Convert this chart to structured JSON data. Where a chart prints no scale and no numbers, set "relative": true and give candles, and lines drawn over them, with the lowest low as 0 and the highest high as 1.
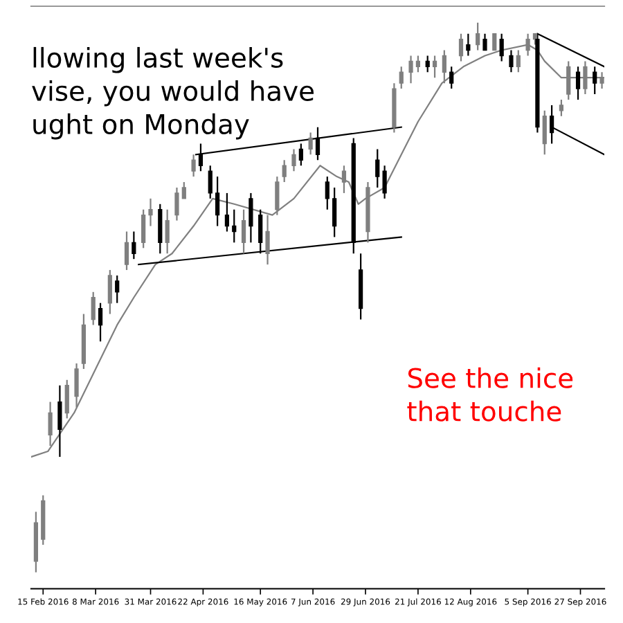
{
  "chart_data": {
    "type": "candlestick",
    "relative": true,
    "x": [
      "2016-02-12",
      "2016-02-15",
      "2016-02-18",
      "2016-02-22",
      "2016-02-25",
      "2016-02-29",
      "2016-03-03",
      "2016-03-07",
      "2016-03-10",
      "2016-03-14",
      "2016-03-17",
      "2016-03-21",
      "2016-03-24",
      "2016-03-28",
      "2016-03-31",
      "2016-04-04",
      "2016-04-07",
      "2016-04-11",
      "2016-04-14",
      "2016-04-18",
      "2016-04-21",
      "2016-04-25",
      "2016-04-28",
      "2016-05-02",
      "2016-05-05",
      "2016-05-09",
      "2016-05-12",
      "2016-05-16",
      "2016-05-19",
      "2016-05-23",
      "2016-05-26",
      "2016-05-30",
      "2016-06-02",
      "2016-06-06",
      "2016-06-09",
      "2016-06-13",
      "2016-06-16",
      "2016-06-20",
      "2016-06-24",
      "2016-06-27",
      "2016-06-30",
      "2016-07-04",
      "2016-07-07",
      "2016-07-11",
      "2016-07-14",
      "2016-07-18",
      "2016-07-21",
      "2016-07-25",
      "2016-07-28",
      "2016-08-01",
      "2016-08-04",
      "2016-08-08",
      "2016-08-11",
      "2016-08-15",
      "2016-08-18",
      "2016-08-22",
      "2016-08-25",
      "2016-08-29",
      "2016-09-01",
      "2016-09-05",
      "2016-09-08",
      "2016-09-09",
      "2016-09-12",
      "2016-09-15",
      "2016-09-19",
      "2016-09-22",
      "2016-09-26",
      "2016-09-29",
      "2016-10-03",
      "2016-10-06"
    ],
    "ohlc": [
      [
        0.02,
        0.11,
        0,
        0.09
      ],
      [
        0.06,
        0.14,
        0.05,
        0.13
      ],
      [
        0.25,
        0.31,
        0.23,
        0.29
      ],
      [
        0.31,
        0.34,
        0.21,
        0.26
      ],
      [
        0.29,
        0.35,
        0.28,
        0.34
      ],
      [
        0.32,
        0.38,
        0.3,
        0.37
      ],
      [
        0.38,
        0.47,
        0.37,
        0.45
      ],
      [
        0.46,
        0.51,
        0.45,
        0.5
      ],
      [
        0.48,
        0.49,
        0.42,
        0.45
      ],
      [
        0.49,
        0.55,
        0.47,
        0.54
      ],
      [
        0.53,
        0.54,
        0.49,
        0.51
      ],
      [
        0.56,
        0.62,
        0.55,
        0.6
      ],
      [
        0.6,
        0.62,
        0.57,
        0.58
      ],
      [
        0.6,
        0.66,
        0.59,
        0.65
      ],
      [
        0.65,
        0.68,
        0.63,
        0.66
      ],
      [
        0.66,
        0.67,
        0.58,
        0.6
      ],
      [
        0.6,
        0.66,
        0.58,
        0.64
      ],
      [
        0.65,
        0.7,
        0.64,
        0.69
      ],
      [
        0.68,
        0.71,
        0.68,
        0.7
      ],
      [
        0.73,
        0.76,
        0.72,
        0.75
      ],
      [
        0.76,
        0.78,
        0.73,
        0.74
      ],
      [
        0.73,
        0.74,
        0.68,
        0.69
      ],
      [
        0.69,
        0.72,
        0.63,
        0.65
      ],
      [
        0.65,
        0.69,
        0.62,
        0.63
      ],
      [
        0.63,
        0.66,
        0.6,
        0.62
      ],
      [
        0.6,
        0.66,
        0.58,
        0.64
      ],
      [
        0.68,
        0.69,
        0.6,
        0.63
      ],
      [
        0.65,
        0.66,
        0.58,
        0.6
      ],
      [
        0.58,
        0.65,
        0.56,
        0.62
      ],
      [
        0.66,
        0.72,
        0.65,
        0.71
      ],
      [
        0.72,
        0.75,
        0.71,
        0.74
      ],
      [
        0.74,
        0.77,
        0.73,
        0.76
      ],
      [
        0.77,
        0.78,
        0.74,
        0.75
      ],
      [
        0.77,
        0.8,
        0.76,
        0.79
      ],
      [
        0.79,
        0.81,
        0.75,
        0.76
      ],
      [
        0.71,
        0.72,
        0.66,
        0.68
      ],
      [
        0.68,
        0.7,
        0.61,
        0.63
      ],
      [
        0.71,
        0.74,
        0.69,
        0.73
      ],
      [
        0.78,
        0.79,
        0.58,
        0.6
      ],
      [
        0.55,
        0.58,
        0.46,
        0.48
      ],
      [
        0.62,
        0.71,
        0.6,
        0.7
      ],
      [
        0.75,
        0.77,
        0.7,
        0.72
      ],
      [
        0.73,
        0.74,
        0.68,
        0.69
      ],
      [
        0.81,
        0.89,
        0.8,
        0.88
      ],
      [
        0.89,
        0.92,
        0.88,
        0.91
      ],
      [
        0.91,
        0.94,
        0.89,
        0.93
      ],
      [
        0.92,
        0.94,
        0.91,
        0.93
      ],
      [
        0.93,
        0.94,
        0.91,
        0.92
      ],
      [
        0.92,
        0.94,
        0.9,
        0.93
      ],
      [
        0.91,
        0.95,
        0.89,
        0.94
      ],
      [
        0.91,
        0.92,
        0.88,
        0.89
      ],
      [
        0.94,
        0.98,
        0.93,
        0.97
      ],
      [
        0.96,
        0.98,
        0.94,
        0.95
      ],
      [
        0.96,
        1,
        0.95,
        0.98
      ],
      [
        0.97,
        0.98,
        0.95,
        0.95
      ],
      [
        0.95,
        0.98,
        0.95,
        0.98
      ],
      [
        0.97,
        0.98,
        0.93,
        0.94
      ],
      [
        0.94,
        0.95,
        0.91,
        0.92
      ],
      [
        0.92,
        0.95,
        0.91,
        0.94
      ],
      [
        0.95,
        0.98,
        0.94,
        0.97
      ],
      [
        0.97,
        0.98,
        0.96,
        0.98
      ],
      [
        0.97,
        0.98,
        0.8,
        0.81
      ],
      [
        0.78,
        0.84,
        0.76,
        0.83
      ],
      [
        0.83,
        0.85,
        0.78,
        0.8
      ],
      [
        0.84,
        0.86,
        0.83,
        0.85
      ],
      [
        0.87,
        0.93,
        0.86,
        0.92
      ],
      [
        0.91,
        0.92,
        0.86,
        0.88
      ],
      [
        0.88,
        0.93,
        0.87,
        0.92
      ],
      [
        0.91,
        0.92,
        0.87,
        0.89
      ],
      [
        0.89,
        0.91,
        0.88,
        0.9
      ]
    ],
    "colors": [
      "#7f7f7f",
      "#7f7f7f",
      "#7f7f7f",
      "#000000",
      "#7f7f7f",
      "#7f7f7f",
      "#7f7f7f",
      "#7f7f7f",
      "#000000",
      "#7f7f7f",
      "#000000",
      "#7f7f7f",
      "#000000",
      "#7f7f7f",
      "#7f7f7f",
      "#000000",
      "#7f7f7f",
      "#7f7f7f",
      "#7f7f7f",
      "#7f7f7f",
      "#000000",
      "#000000",
      "#000000",
      "#000000",
      "#000000",
      "#7f7f7f",
      "#000000",
      "#000000",
      "#7f7f7f",
      "#7f7f7f",
      "#7f7f7f",
      "#7f7f7f",
      "#000000",
      "#7f7f7f",
      "#000000",
      "#000000",
      "#000000",
      "#7f7f7f",
      "#000000",
      "#000000",
      "#7f7f7f",
      "#000000",
      "#000000",
      "#7f7f7f",
      "#7f7f7f",
      "#7f7f7f",
      "#7f7f7f",
      "#000000",
      "#7f7f7f",
      "#7f7f7f",
      "#000000",
      "#7f7f7f",
      "#000000",
      "#7f7f7f",
      "#000000",
      "#7f7f7f",
      "#000000",
      "#000000",
      "#7f7f7f",
      "#7f7f7f",
      "#7f7f7f",
      "#000000",
      "#7f7f7f",
      "#000000",
      "#7f7f7f",
      "#7f7f7f",
      "#000000",
      "#7f7f7f",
      "#000000",
      "#7f7f7f"
    ],
    "series": [
      {
        "type": "line",
        "color": "#808080",
        "x": [
          "2016-02-10",
          "2016-02-17",
          "2016-02-28",
          "2016-03-08",
          "2016-03-17",
          "2016-03-24",
          "2016-04-02",
          "2016-04-09",
          "2016-04-18",
          "2016-04-26",
          "2016-05-05",
          "2016-05-21",
          "2016-05-30",
          "2016-06-10",
          "2016-06-17",
          "2016-06-22",
          "2016-06-26",
          "2016-06-29",
          "2016-07-07",
          "2016-07-14",
          "2016-07-21",
          "2016-07-31",
          "2016-08-09",
          "2016-08-18",
          "2016-08-25",
          "2016-09-05",
          "2016-09-09",
          "2016-09-12",
          "2016-09-19",
          "2016-09-23",
          "2016-10-07"
        ],
        "values": [
          0.21,
          0.22,
          0.29,
          0.37,
          0.45,
          0.5,
          0.56,
          0.58,
          0.63,
          0.68,
          0.67,
          0.65,
          0.68,
          0.74,
          0.72,
          0.71,
          0.67,
          0.68,
          0.7,
          0.76,
          0.82,
          0.89,
          0.92,
          0.94,
          0.95,
          0.96,
          0.95,
          0.93,
          0.9,
          0.9,
          0.9
        ]
      },
      {
        "type": "line",
        "color": "#000000",
        "x": [
          "2016-03-26",
          "2016-07-14"
        ],
        "values": [
          0.56,
          0.61
        ]
      },
      {
        "type": "line",
        "color": "#000000",
        "x": [
          "2016-04-19",
          "2016-07-14"
        ],
        "values": [
          0.76,
          0.81
        ]
      },
      {
        "type": "line",
        "color": "#000000",
        "x": [
          "2016-09-09",
          "2016-10-07"
        ],
        "values": [
          0.98,
          0.92
        ]
      },
      {
        "type": "line",
        "color": "#000000",
        "x": [
          "2016-09-15",
          "2016-10-07"
        ],
        "values": [
          0.81,
          0.76
        ]
      }
    ],
    "xlim": [
      "2016-02-10",
      "2016-10-07"
    ],
    "xticks": [
      {
        "value": "2016-02-15",
        "label": "15 Feb 2016"
      },
      {
        "value": "2016-03-08",
        "label": "8 Mar 2016"
      },
      {
        "value": "2016-03-31",
        "label": "31 Mar 2016"
      },
      {
        "value": "2016-04-22",
        "label": "22 Apr 2016"
      },
      {
        "value": "2016-05-16",
        "label": "16 May 2016"
      },
      {
        "value": "2016-06-07",
        "label": "7 Jun 2016"
      },
      {
        "value": "2016-06-29",
        "label": "29 Jun 2016"
      },
      {
        "value": "2016-07-21",
        "label": "21 Jul 2016"
      },
      {
        "value": "2016-08-12",
        "label": "12 Aug 2016"
      },
      {
        "value": "2016-09-05",
        "label": "5 Sep 2016"
      },
      {
        "value": "2016-09-27",
        "label": "27 Sep 2016"
      }
    ],
    "annotations": [
      "llowing last week's\nvise, you would have\nught on Monday",
      "See the nice\nthat touche"
    ],
    "grid": false
  }
}
